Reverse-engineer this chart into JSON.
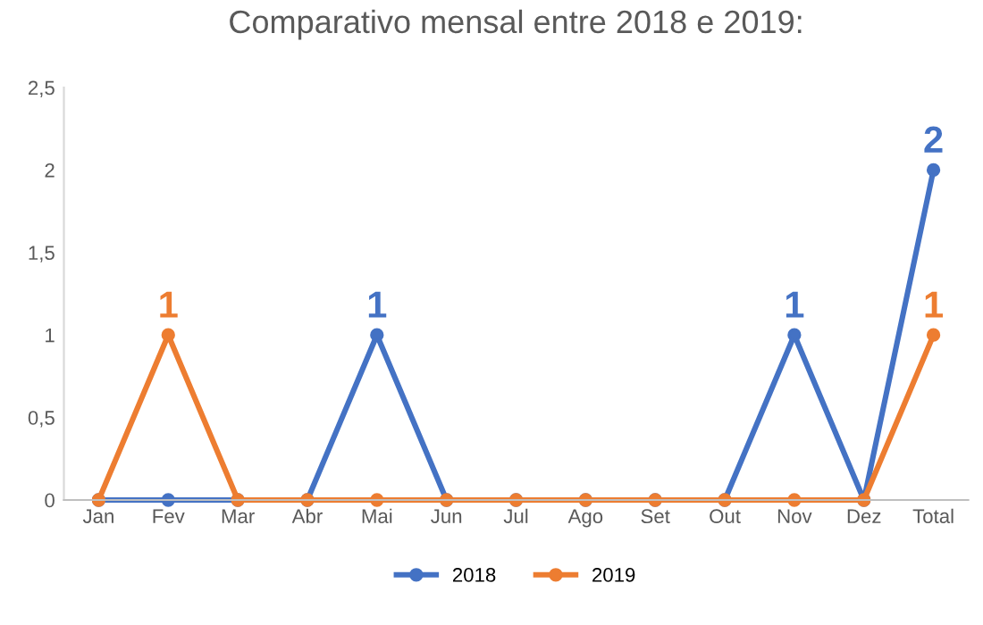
{
  "chart_data": {
    "type": "line",
    "title": "Comparativo mensal entre 2018 e 2019:",
    "categories": [
      "Jan",
      "Fev",
      "Mar",
      "Abr",
      "Mai",
      "Jun",
      "Jul",
      "Ago",
      "Set",
      "Out",
      "Nov",
      "Dez",
      "Total"
    ],
    "series": [
      {
        "name": "2018",
        "color": "#4472c4",
        "values": [
          0,
          0,
          0,
          0,
          1,
          0,
          0,
          0,
          0,
          0,
          1,
          0,
          2
        ],
        "value_labels": [
          null,
          null,
          null,
          null,
          "1",
          null,
          null,
          null,
          null,
          null,
          "1",
          null,
          "2"
        ]
      },
      {
        "name": "2019",
        "color": "#ed7d31",
        "values": [
          0,
          1,
          0,
          0,
          0,
          0,
          0,
          0,
          0,
          0,
          0,
          0,
          1
        ],
        "value_labels": [
          null,
          "1",
          null,
          null,
          null,
          null,
          null,
          null,
          null,
          null,
          null,
          null,
          "1"
        ]
      }
    ],
    "ylim": [
      0,
      2.5
    ],
    "yticks": [
      0,
      {
        "value": 0.5,
        "label": "0,5"
      },
      1,
      {
        "value": 1.5,
        "label": "1,5"
      },
      2,
      {
        "value": 2.5,
        "label": "2,5"
      }
    ],
    "grid": false,
    "legend": "bottom",
    "marker": "circle",
    "line_style": "solid"
  }
}
